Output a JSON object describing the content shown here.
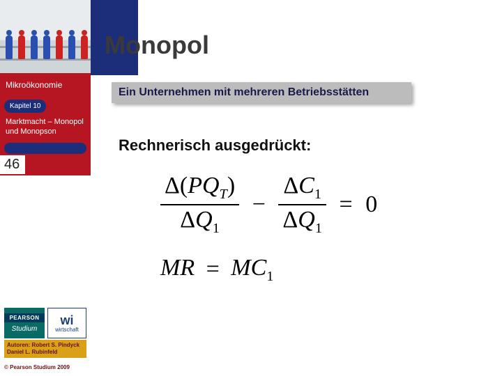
{
  "sidebar": {
    "course_label": "Mikroökonomie",
    "chapter_pill": "Kapitel 10",
    "chapter_title": "Marktmacht – Monopol und Monopson",
    "page_number": "46",
    "logos": {
      "pearson_top": "PEARSON",
      "pearson_bottom": "Studium",
      "wi_top": "wi",
      "wi_bottom": "wirtschaft"
    },
    "authors_line1": "Autoren: Robert S. Pindyck",
    "authors_line2": "Daniel L. Rubinfeld",
    "copyright": "© Pearson Studium 2009"
  },
  "main": {
    "title": "Monopol",
    "subtitle": "Ein Unternehmen mit mehreren Betriebsstätten",
    "body_heading": "Rechnerisch ausgedrückt:",
    "equation": {
      "frac1_num_a": "Δ(",
      "frac1_num_b": "PQ",
      "frac1_num_sub": "T",
      "frac1_num_c": ")",
      "frac1_den_a": "Δ",
      "frac1_den_b": "Q",
      "frac1_den_sub": "1",
      "minus": "−",
      "frac2_num_a": "Δ",
      "frac2_num_b": "C",
      "frac2_num_sub": "1",
      "frac2_den_a": "Δ",
      "frac2_den_b": "Q",
      "frac2_den_sub": "1",
      "eq": "=",
      "zero": "0",
      "line2_a": "MR",
      "line2_eq": "=",
      "line2_b": "MC",
      "line2_sub": "1"
    }
  },
  "colors": {
    "sidebar_red": "#b51621",
    "pill_blue": "#1c2e7a",
    "subtitle_bg": "#bcbcbc",
    "subtitle_text": "#1a1a4a",
    "authors_bg": "#d9a018",
    "authors_text": "#6b0f0f"
  }
}
